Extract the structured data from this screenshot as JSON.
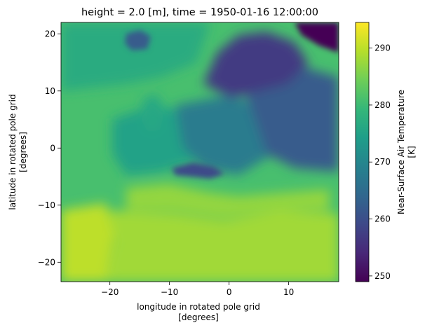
{
  "chart_data": {
    "type": "heatmap",
    "title": "height = 2.0 [m], time = 1950-01-16 12:00:00",
    "xlabel_line1": "longitude in rotated pole grid",
    "xlabel_line2": "[degrees]",
    "ylabel_line1": "latitude in rotated pole grid",
    "ylabel_line2": "[degrees]",
    "xlim": [
      -28.2,
      18.4
    ],
    "ylim": [
      -23.4,
      22.0
    ],
    "x_ticks": [
      -20,
      -10,
      0,
      10
    ],
    "x_tick_labels": [
      "−20",
      "−10",
      "0",
      "10"
    ],
    "y_ticks": [
      -20,
      -10,
      0,
      10,
      20
    ],
    "y_tick_labels": [
      "−20",
      "−10",
      "0",
      "10",
      "20"
    ],
    "colorbar": {
      "label_line1": "Near-Surface Air Temperature",
      "label_line2": "[K]",
      "range": [
        249,
        294.5
      ],
      "ticks": [
        250,
        260,
        270,
        280,
        290
      ],
      "tick_labels": [
        "250",
        "260",
        "270",
        "280",
        "290"
      ],
      "colormap": [
        "#440154",
        "#482878",
        "#3e4989",
        "#31688e",
        "#26828e",
        "#1f9e89",
        "#35b779",
        "#6ece58",
        "#b5de2b",
        "#fde725"
      ]
    },
    "regions": {
      "ocean_sw": 290,
      "ocean_w": 281,
      "ocean_n": 277,
      "mediterranean": 287,
      "north_africa": 288,
      "western_europe": 275,
      "central_europe": 268,
      "eastern_europe": 262,
      "scandinavia": 257,
      "arctic_ne": 249,
      "alps": 259,
      "iceland": 262,
      "british_isles": 276
    }
  }
}
